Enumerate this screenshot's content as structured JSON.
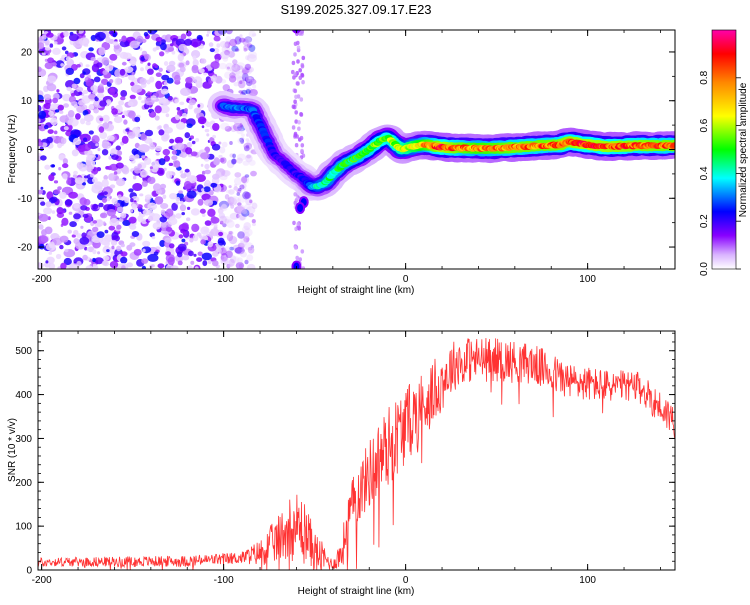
{
  "chart_data": [
    {
      "type": "heatmap",
      "title": "S199.2025.327.09.17.E23",
      "xlabel": "Height of straight line (km)",
      "ylabel": "Frequency (Hz)",
      "xlim": [
        -202,
        148
      ],
      "ylim": [
        -24.5,
        24.5
      ],
      "xticks": [
        -200,
        -100,
        0,
        100
      ],
      "yticks": [
        20,
        10,
        0,
        -10,
        -20
      ],
      "colorbar": {
        "label": "Normalized spectral amplitude",
        "range": [
          0,
          1
        ],
        "ticks": [
          "0.0",
          "0.2",
          "0.4",
          "0.6",
          "0.8"
        ],
        "tick_values": [
          0.0,
          0.2,
          0.4,
          0.6,
          0.8
        ],
        "colors": [
          "#ffffff",
          "#8800ff",
          "#0000ff",
          "#00ffff",
          "#00ff00",
          "#ffff00",
          "#ff8800",
          "#ff0000",
          "#ff00aa"
        ]
      },
      "noise_region": [
        -202,
        -83
      ],
      "ridge_points": [
        [
          -100,
          9
        ],
        [
          -96,
          8.5
        ],
        [
          -90,
          8.5
        ],
        [
          -84,
          8.2
        ],
        [
          -80,
          5
        ],
        [
          -76,
          2
        ],
        [
          -72,
          -1
        ],
        [
          -66,
          -3
        ],
        [
          -60,
          -5
        ],
        [
          -56,
          -6
        ],
        [
          -52,
          -7.5
        ],
        [
          -48,
          -7.5
        ],
        [
          -44,
          -6.8
        ],
        [
          -40,
          -5
        ],
        [
          -34,
          -3
        ],
        [
          -26,
          -1.5
        ],
        [
          -20,
          0
        ],
        [
          -14,
          1.8
        ],
        [
          -10,
          2.5
        ],
        [
          -6,
          1.2
        ],
        [
          -2,
          0
        ],
        [
          4,
          0.6
        ],
        [
          10,
          1
        ],
        [
          20,
          0.5
        ],
        [
          30,
          0.3
        ],
        [
          50,
          0.2
        ],
        [
          70,
          0.7
        ],
        [
          85,
          1
        ],
        [
          90,
          1.6
        ],
        [
          100,
          1
        ],
        [
          110,
          0.6
        ],
        [
          120,
          0.7
        ],
        [
          130,
          0.8
        ],
        [
          148,
          0.8
        ]
      ],
      "ridge_amplitude": [
        [
          -100,
          0.3
        ],
        [
          -84,
          0.28
        ],
        [
          -70,
          0.2
        ],
        [
          -56,
          0.22
        ],
        [
          -48,
          0.4
        ],
        [
          -40,
          0.45
        ],
        [
          -25,
          0.5
        ],
        [
          -10,
          0.55
        ],
        [
          0,
          0.6
        ],
        [
          20,
          0.85
        ],
        [
          40,
          0.75
        ],
        [
          60,
          0.8
        ],
        [
          80,
          0.8
        ],
        [
          100,
          0.85
        ],
        [
          148,
          0.8
        ]
      ],
      "secondary_spots": [
        [
          -56,
          -10.8
        ],
        [
          -58,
          -12
        ],
        [
          -60,
          25
        ],
        [
          -60,
          -24
        ]
      ]
    },
    {
      "type": "line",
      "xlabel": "Height of straight line (km)",
      "ylabel": "SNR (10 * v/v)",
      "xlim": [
        -202,
        148
      ],
      "ylim": [
        0,
        545
      ],
      "xticks": [
        -200,
        -100,
        0,
        100
      ],
      "yticks": [
        0,
        100,
        200,
        300,
        400,
        500
      ],
      "series": [
        {
          "name": "SNR",
          "color": "#ff3333",
          "trend": [
            [
              -202,
              18
            ],
            [
              -120,
              20
            ],
            [
              -90,
              28
            ],
            [
              -80,
              40
            ],
            [
              -70,
              70
            ],
            [
              -62,
              110
            ],
            [
              -55,
              90
            ],
            [
              -50,
              40
            ],
            [
              -40,
              12
            ],
            [
              -35,
              40
            ],
            [
              -32,
              110
            ],
            [
              -28,
              160
            ],
            [
              -20,
              220
            ],
            [
              -10,
              280
            ],
            [
              0,
              330
            ],
            [
              10,
              380
            ],
            [
              20,
              430
            ],
            [
              25,
              460
            ],
            [
              30,
              480
            ],
            [
              50,
              480
            ],
            [
              70,
              470
            ],
            [
              90,
              430
            ],
            [
              110,
              420
            ],
            [
              125,
              420
            ],
            [
              130,
              410
            ],
            [
              140,
              370
            ],
            [
              148,
              340
            ]
          ],
          "noise_amplitude": [
            [
              -202,
              10
            ],
            [
              -90,
              14
            ],
            [
              -80,
              30
            ],
            [
              -60,
              80
            ],
            [
              -48,
              45
            ],
            [
              -40,
              10
            ],
            [
              -32,
              60
            ],
            [
              -10,
              95
            ],
            [
              10,
              80
            ],
            [
              30,
              55
            ],
            [
              80,
              45
            ],
            [
              120,
              35
            ],
            [
              148,
              40
            ]
          ]
        }
      ]
    }
  ]
}
